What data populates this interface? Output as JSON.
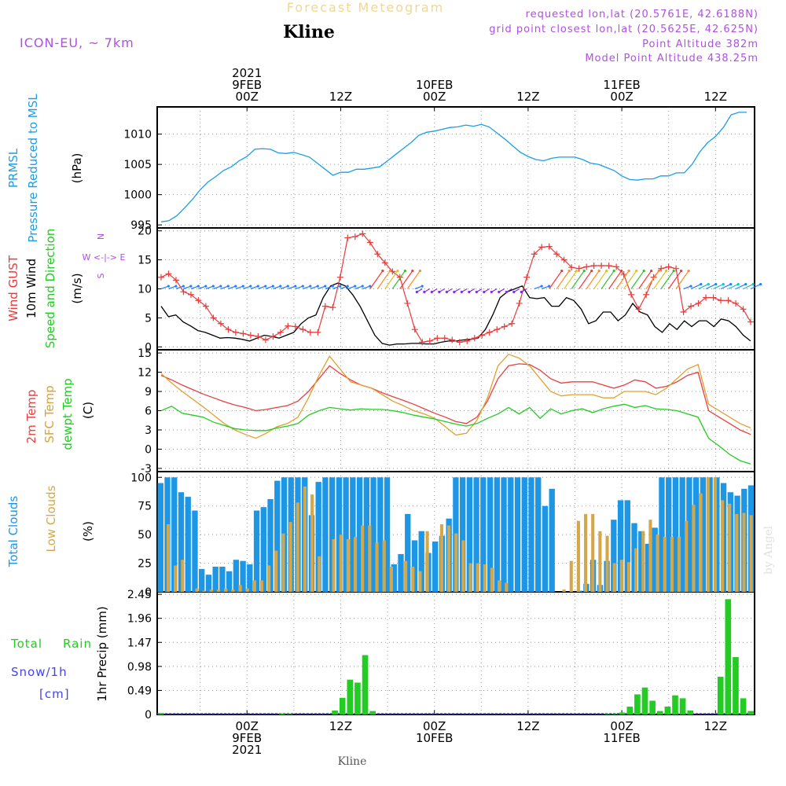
{
  "header": {
    "title_faint": "Forecast Meteogram",
    "location": "Kline",
    "model": "ICON-EU, ~ 7km",
    "requested": "requested lon,lat (20.5761E, 42.6188N)",
    "gridpoint": "grid point closest lon,lat (20.5625E, 42.625N)",
    "point_alt": "Point Altitude 382m",
    "model_alt": "Model Point Altitude 438.25m"
  },
  "footer": {
    "location": "Kline",
    "watermark": "by Angel"
  },
  "colors": {
    "prmsl": "#1a9ee6",
    "gust": "#e83b3b",
    "wind": "#000000",
    "temp2m": "#e84040",
    "sfc": "#e0a030",
    "dewpt": "#22cc22",
    "total_clouds": "#1e96e6",
    "low_clouds": "#d4a84a",
    "rain": "#22cc22",
    "snow": "#4444ee",
    "label_purple": "#b050e0",
    "wind_dir_label": "#b050e0"
  },
  "time_axis": {
    "top_labels": [
      {
        "t": 0,
        "lines": [
          "2021",
          "9FEB",
          "00Z"
        ]
      },
      {
        "t": 12,
        "lines": [
          "12Z"
        ]
      },
      {
        "t": 24,
        "lines": [
          "10FEB",
          "00Z"
        ]
      },
      {
        "t": 36,
        "lines": [
          "12Z"
        ]
      },
      {
        "t": 48,
        "lines": [
          "11FEB",
          "00Z"
        ]
      },
      {
        "t": 60,
        "lines": [
          "12Z"
        ]
      }
    ],
    "bottom_labels": [
      {
        "t": 0,
        "lines": [
          "00Z",
          "9FEB",
          "2021"
        ]
      },
      {
        "t": 12,
        "lines": [
          "12Z"
        ]
      },
      {
        "t": 24,
        "lines": [
          "00Z",
          "10FEB"
        ]
      },
      {
        "t": 36,
        "lines": [
          "12Z"
        ]
      },
      {
        "t": 48,
        "lines": [
          "00Z",
          "11FEB"
        ]
      },
      {
        "t": 60,
        "lines": [
          "12Z"
        ]
      }
    ]
  },
  "panel_labels": {
    "p1": {
      "a": "PRMSL",
      "b": "Pressure Reduced to MSL",
      "unit": "(hPa)"
    },
    "p2": {
      "a": "Wind GUST",
      "b": "10m Wind",
      "c": "Speed and Direction",
      "unit": "(m/s)",
      "dir": "W <-|-> E",
      "dir_n": "N",
      "dir_s": "S"
    },
    "p3": {
      "a": "2m Temp",
      "b": "SFC Temp",
      "c": "dewpt Temp",
      "unit": "(C)"
    },
    "p4": {
      "a": "Total Clouds",
      "b": "Low Clouds",
      "unit": "(%)"
    },
    "p5": {
      "a": "Total",
      "a2": "Rain",
      "b": "Snow/1h",
      "b2": "[cm]",
      "unit": "1hr Precip (mm)"
    }
  },
  "chart_data": [
    {
      "type": "line",
      "title": "PRMSL Pressure Reduced to MSL",
      "ylabel": "(hPa)",
      "ylim": [
        994.5,
        1014.5
      ],
      "yticks": [
        "995",
        "1000",
        "1005",
        "1010"
      ],
      "xlim": [
        -11.5,
        65
      ],
      "x": [
        -11,
        -10,
        -9,
        -8,
        -7,
        -6,
        -5,
        -4,
        -3,
        -2,
        -1,
        0,
        1,
        2,
        3,
        4,
        5,
        6,
        7,
        8,
        9,
        10,
        11,
        12,
        13,
        14,
        15,
        16,
        17,
        18,
        19,
        20,
        21,
        22,
        23,
        24,
        25,
        26,
        27,
        28,
        29,
        30,
        31,
        32,
        33,
        34,
        35,
        36,
        37,
        38,
        39,
        40,
        41,
        42,
        43,
        44,
        45,
        46,
        47,
        48,
        49,
        50,
        51,
        52,
        53,
        54,
        55,
        56,
        57,
        58,
        59,
        60,
        61,
        62,
        63,
        64
      ],
      "series": [
        {
          "name": "PRMSL",
          "values": [
            995.5,
            995.7,
            996.5,
            997.8,
            999.2,
            1000.8,
            1002.1,
            1003.0,
            1004.0,
            1004.6,
            1005.6,
            1006.3,
            1007.5,
            1007.6,
            1007.5,
            1006.9,
            1006.8,
            1007.0,
            1006.6,
            1006.2,
            1005.2,
            1004.2,
            1003.2,
            1003.7,
            1003.7,
            1004.2,
            1004.2,
            1004.4,
            1004.6,
            1005.6,
            1006.6,
            1007.6,
            1008.6,
            1009.8,
            1010.3,
            1010.5,
            1010.8,
            1011.1,
            1011.2,
            1011.5,
            1011.3,
            1011.6,
            1011.2,
            1010.2,
            1009.2,
            1008.1,
            1007.0,
            1006.3,
            1005.8,
            1005.6,
            1006.0,
            1006.2,
            1006.2,
            1006.2,
            1005.8,
            1005.2,
            1005.0,
            1004.5,
            1004.0,
            1003.1,
            1002.5,
            1002.4,
            1002.6,
            1002.6,
            1003.1,
            1003.1,
            1003.6,
            1003.6,
            1005.0,
            1007.1,
            1008.6,
            1009.6,
            1011.1,
            1013.2,
            1013.6,
            1013.6
          ]
        }
      ]
    },
    {
      "type": "line",
      "title": "Wind GUST / 10m Wind Speed and Direction",
      "ylabel": "(m/s)",
      "ylim": [
        -0.5,
        20.5
      ],
      "yticks": [
        "0",
        "5",
        "10",
        "15",
        "20"
      ],
      "series": [
        {
          "name": "Wind GUST",
          "values": [
            12.0,
            12.6,
            11.5,
            9.5,
            9.0,
            8.0,
            7.0,
            5.0,
            4.0,
            3.0,
            2.5,
            2.3,
            2.0,
            1.8,
            1.2,
            1.8,
            2.5,
            3.6,
            3.5,
            3.0,
            2.5,
            2.5,
            7.0,
            6.8,
            12.0,
            18.8,
            19.0,
            19.5,
            18.0,
            16.0,
            14.5,
            13.0,
            12.0,
            7.5,
            3.0,
            0.8,
            1.0,
            1.5,
            1.5,
            1.2,
            0.8,
            1.0,
            1.5,
            2.0,
            2.5,
            3.0,
            3.5,
            4.0,
            7.5,
            12.0,
            16.0,
            17.2,
            17.3,
            16.0,
            15.0,
            13.7,
            13.5,
            13.8,
            14.0,
            14.0,
            14.0,
            13.8,
            12.5,
            9.0,
            6.5,
            9.0,
            12.0,
            13.5,
            13.8,
            13.5,
            6.0,
            7.0,
            7.5,
            8.5,
            8.5,
            8.0,
            8.0,
            7.5,
            6.5,
            4.3
          ]
        },
        {
          "name": "10m Wind",
          "values": [
            7.0,
            5.2,
            5.5,
            4.3,
            3.6,
            2.8,
            2.5,
            2.0,
            1.5,
            1.6,
            1.5,
            1.3,
            1.0,
            1.5,
            2.0,
            1.8,
            1.5,
            2.0,
            2.5,
            4.0,
            5.0,
            5.5,
            8.5,
            10.5,
            11.0,
            10.5,
            9.0,
            7.0,
            4.5,
            2.0,
            0.6,
            0.3,
            0.5,
            0.5,
            0.6,
            0.6,
            0.5,
            0.5,
            0.8,
            1.0,
            1.0,
            1.2,
            1.3,
            1.5,
            3.0,
            5.5,
            8.5,
            9.5,
            10.0,
            10.5,
            8.5,
            8.3,
            8.5,
            7.0,
            7.0,
            8.5,
            8.0,
            6.5,
            4.0,
            4.5,
            6.0,
            6.0,
            4.5,
            5.5,
            7.5,
            6.0,
            5.5,
            3.5,
            2.5,
            4.0,
            3.0,
            4.5,
            3.5,
            4.5,
            4.5,
            3.5,
            4.8,
            4.5,
            3.5,
            2.0,
            1.0
          ]
        }
      ]
    },
    {
      "type": "line",
      "title": "2m Temp / SFC Temp / dewpt Temp",
      "ylabel": "(C)",
      "ylim": [
        -3.5,
        15.5
      ],
      "yticks": [
        "-3",
        "0",
        "3",
        "6",
        "9",
        "12",
        "15"
      ],
      "series": [
        {
          "name": "2m Temp",
          "values": [
            11.5,
            10.8,
            10.0,
            9.3,
            8.6,
            8.0,
            7.4,
            6.9,
            6.5,
            6.0,
            6.2,
            6.5,
            6.8,
            7.5,
            9.0,
            11.0,
            13.0,
            11.8,
            10.8,
            10.0,
            9.5,
            8.8,
            8.2,
            7.6,
            7.0,
            6.3,
            5.6,
            5.0,
            4.3,
            4.0,
            5.0,
            7.5,
            11.0,
            13.0,
            13.3,
            13.2,
            12.3,
            11.0,
            10.3,
            10.5,
            10.5,
            10.5,
            10.0,
            9.5,
            10.0,
            10.8,
            10.5,
            9.5,
            9.8,
            10.5,
            11.5,
            12.0,
            6.0,
            5.0,
            4.0,
            3.0,
            2.3
          ]
        },
        {
          "name": "SFC Temp",
          "values": [
            11.8,
            10.3,
            9.0,
            7.8,
            6.6,
            5.3,
            4.0,
            3.0,
            2.3,
            1.7,
            2.5,
            3.5,
            4.0,
            5.0,
            8.0,
            11.5,
            14.5,
            12.5,
            10.5,
            10.0,
            9.5,
            8.5,
            7.5,
            6.8,
            6.0,
            5.5,
            4.8,
            3.5,
            2.2,
            2.5,
            4.5,
            8.0,
            13.0,
            14.8,
            14.2,
            13.0,
            11.0,
            9.0,
            8.3,
            8.5,
            8.5,
            8.5,
            8.0,
            8.0,
            9.0,
            9.0,
            9.0,
            8.5,
            9.5,
            11.0,
            12.5,
            13.2,
            7.0,
            6.0,
            5.0,
            4.0,
            3.3
          ]
        },
        {
          "name": "dewpt Temp",
          "values": [
            6.0,
            6.7,
            5.6,
            5.3,
            5.0,
            4.2,
            3.7,
            3.2,
            3.0,
            2.9,
            2.9,
            3.3,
            3.6,
            4.0,
            5.3,
            6.0,
            6.5,
            6.3,
            6.1,
            6.3,
            6.2,
            6.2,
            6.0,
            5.7,
            5.3,
            5.0,
            4.7,
            4.3,
            3.9,
            3.6,
            4.0,
            4.8,
            5.5,
            6.5,
            5.5,
            6.5,
            4.8,
            6.3,
            5.5,
            6.0,
            6.3,
            5.7,
            6.3,
            6.7,
            7.0,
            6.5,
            6.8,
            6.3,
            6.2,
            6.0,
            5.5,
            5.0,
            1.7,
            0.5,
            -0.8,
            -1.8,
            -2.3
          ]
        }
      ]
    },
    {
      "type": "bar",
      "title": "Total Clouds / Low Clouds",
      "ylabel": "(%)",
      "ylim": [
        0,
        105
      ],
      "yticks": [
        "0",
        "25",
        "50",
        "75",
        "100"
      ],
      "series": [
        {
          "name": "Total Clouds",
          "values": [
            95,
            100,
            100,
            87,
            83,
            71,
            20,
            15,
            22,
            22,
            18,
            28,
            27,
            24,
            71,
            74,
            81,
            97,
            100,
            100,
            100,
            100,
            67,
            96,
            100,
            100,
            100,
            100,
            100,
            100,
            100,
            100,
            100,
            100,
            24,
            33,
            68,
            45,
            53,
            34,
            44,
            49,
            64,
            100,
            100,
            100,
            100,
            100,
            100,
            100,
            100,
            100,
            100,
            100,
            100,
            100,
            75,
            90,
            0,
            0,
            0,
            1,
            7,
            28,
            6,
            27,
            63,
            80,
            80,
            60,
            53,
            42,
            56,
            100,
            100,
            100,
            100,
            100,
            100,
            100,
            100,
            100,
            95,
            87,
            84,
            90,
            93
          ]
        },
        {
          "name": "Low Clouds",
          "values": [
            0,
            59,
            23,
            28,
            0,
            3,
            1,
            2,
            2,
            3,
            2,
            6,
            3,
            10,
            10,
            23,
            36,
            51,
            61,
            78,
            92,
            85,
            31,
            0,
            46,
            50,
            46,
            48,
            58,
            58,
            43,
            45,
            22,
            0,
            27,
            22,
            18,
            53,
            0,
            59,
            58,
            51,
            45,
            25,
            25,
            24,
            21,
            10,
            8,
            0,
            0,
            0,
            0,
            0,
            0,
            0,
            2,
            27,
            62,
            68,
            68,
            53,
            49,
            25,
            28,
            26,
            38,
            53,
            63,
            50,
            48,
            48,
            48,
            62,
            76,
            86,
            100,
            100,
            80,
            77,
            68,
            69,
            67
          ]
        }
      ]
    },
    {
      "type": "bar",
      "title": "1hr Precip",
      "ylabel": "1hr Precip (mm)",
      "ylim": [
        0,
        2.5
      ],
      "yticks": [
        "0",
        "0.49",
        "0.98",
        "1.47",
        "1.96",
        "2.45"
      ],
      "series": [
        {
          "name": "Total Rain",
          "values": [
            0.03,
            0,
            0,
            0,
            0,
            0,
            0,
            0,
            0,
            0,
            0,
            0,
            0,
            0,
            0,
            0,
            0.02,
            0.01,
            0,
            0,
            0,
            0,
            0,
            0.08,
            0.34,
            0.71,
            0.65,
            1.21,
            0.07,
            0,
            0,
            0,
            0,
            0,
            0,
            0,
            0,
            0,
            0,
            0,
            0,
            0,
            0,
            0,
            0,
            0,
            0,
            0,
            0,
            0,
            0,
            0,
            0,
            0,
            0,
            0,
            0,
            0,
            0,
            0.01,
            0.01,
            0.04,
            0.16,
            0.41,
            0.55,
            0.28,
            0.07,
            0.16,
            0.39,
            0.33,
            0.08,
            0,
            0,
            0,
            0.77,
            2.35,
            1.17,
            0.33,
            0.07
          ]
        }
      ]
    }
  ]
}
